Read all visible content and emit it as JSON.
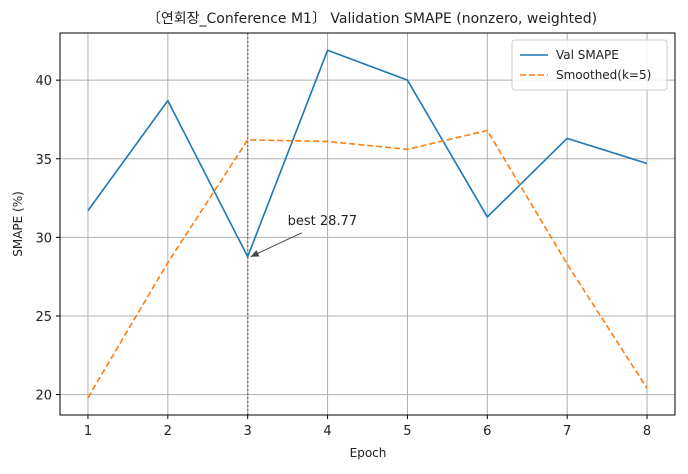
{
  "chart_data": {
    "type": "line",
    "title": "〔연회장_Conference M1〕 Validation SMAPE (nonzero, weighted)",
    "xlabel": "Epoch",
    "ylabel": "SMAPE (%)",
    "x": [
      1,
      2,
      3,
      4,
      5,
      6,
      7,
      8
    ],
    "x_ticks": [
      "1",
      "2",
      "3",
      "4",
      "5",
      "6",
      "7",
      "8"
    ],
    "y_ticks": [
      "20",
      "25",
      "30",
      "35",
      "40"
    ],
    "xlim": [
      0.65,
      8.35
    ],
    "ylim": [
      18.7,
      43.0
    ],
    "grid": true,
    "legend_position": "top-right",
    "series": [
      {
        "name": "Val SMAPE",
        "values": [
          31.7,
          38.7,
          28.77,
          41.9,
          40.0,
          31.3,
          36.3,
          34.7
        ],
        "color": "#1f77b4",
        "style": "solid"
      },
      {
        "name": "Smoothed(k=5)",
        "values": [
          19.8,
          28.4,
          36.2,
          36.1,
          35.6,
          36.8,
          28.3,
          20.4
        ],
        "color": "#ff7f0e",
        "style": "dashed"
      }
    ],
    "best_epoch_line": {
      "x": 3,
      "color": "#7f7f7f",
      "style": "dotted"
    },
    "annotation": {
      "text": "best 28.77",
      "x": 3,
      "y": 28.77,
      "text_x": 3.5,
      "text_y": 30.8
    }
  }
}
